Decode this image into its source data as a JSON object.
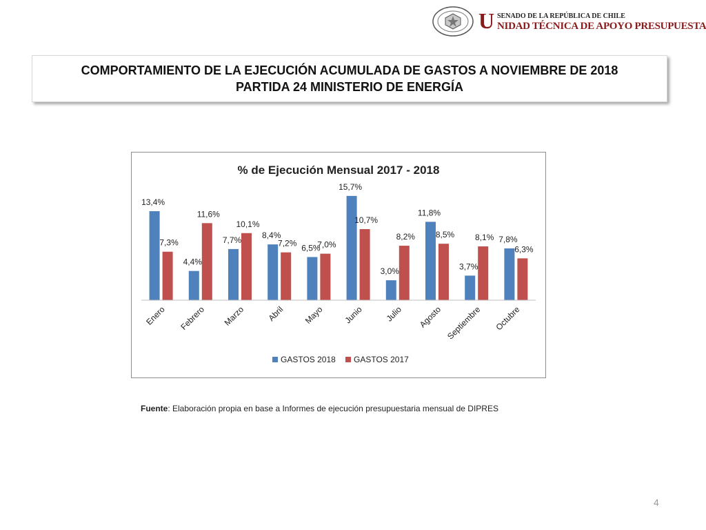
{
  "header": {
    "logo_initial": "U",
    "logo_line1": "SENADO DE LA REPÚBLICA DE CHILE",
    "logo_line2": "NIDAD TÉCNICA DE APOYO PRESUPUESTARIO",
    "seal_text_top": "REPÚBLICA DE CHILE",
    "seal_text_bottom": "SENADO"
  },
  "title": {
    "line1": "COMPORTAMIENTO DE LA EJECUCIÓN ACUMULADA DE GASTOS A NOVIEMBRE DE 2018",
    "line2": "PARTIDA 24 MINISTERIO DE ENERGÍA"
  },
  "chart_data": {
    "type": "bar",
    "title": "% de Ejecución Mensual 2017 - 2018",
    "categories": [
      "Enero",
      "Febrero",
      "Marzo",
      "Abril",
      "Mayo",
      "Junio",
      "Julio",
      "Agosto",
      "Septiembre",
      "Octubre"
    ],
    "series": [
      {
        "name": "GASTOS 2018",
        "color": "#4f81bd",
        "values": [
          13.4,
          4.4,
          7.7,
          8.4,
          6.5,
          15.7,
          3.0,
          11.8,
          3.7,
          7.8
        ],
        "labels": [
          "13,4%",
          "4,4%",
          "7,7%",
          "8,4%",
          "6,5%",
          "15,7%",
          "3,0%",
          "11,8%",
          "3,7%",
          "7,8%"
        ]
      },
      {
        "name": "GASTOS 2017",
        "color": "#c0504d",
        "values": [
          7.3,
          11.6,
          10.1,
          7.2,
          7.0,
          10.7,
          8.2,
          8.5,
          8.1,
          6.3
        ],
        "labels": [
          "7,3%",
          "11,6%",
          "10,1%",
          "7,2%",
          "7,0%",
          "10,7%",
          "8,2%",
          "8,5%",
          "8,1%",
          "6,3%"
        ]
      }
    ],
    "ylim": [
      0,
      16
    ],
    "legend_position": "bottom",
    "grid": false
  },
  "source": {
    "label": "Fuente",
    "text": ": Elaboración propia en base  a Informes de ejecución presupuestaria mensual de DIPRES"
  },
  "page_number": "4"
}
